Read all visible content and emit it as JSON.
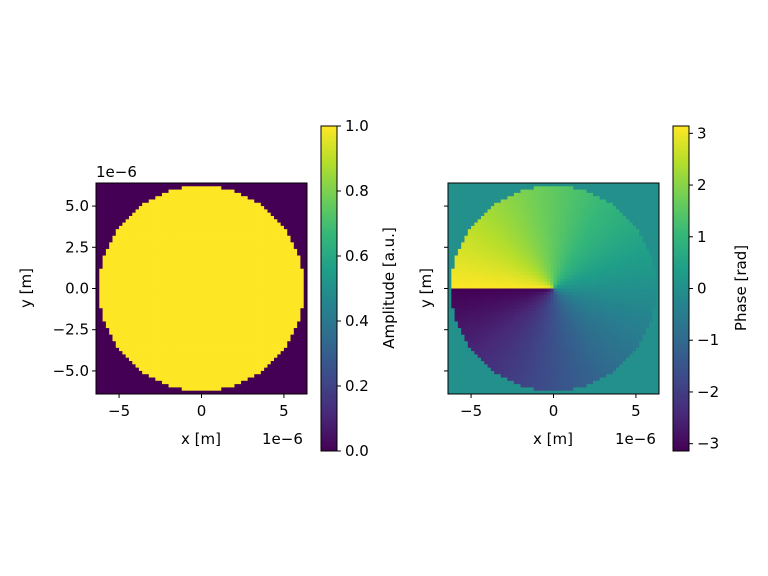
{
  "chart_data": [
    {
      "type": "heatmap",
      "field": "amplitude",
      "description": "Circular aperture: amplitude 1 inside disk, 0 outside",
      "xlabel": "x [m]",
      "ylabel": "y [m]",
      "x_offset_label": "1e−6",
      "y_offset_label": "1e−6",
      "xlim": [
        -6.4e-06,
        6.4e-06
      ],
      "ylim": [
        -6.4e-06,
        6.4e-06
      ],
      "aperture_radius": 6.2e-06,
      "grid_size": 64,
      "xticks": [
        {
          "v": -5,
          "label": "−5"
        },
        {
          "v": 0,
          "label": "0"
        },
        {
          "v": 5,
          "label": "5"
        }
      ],
      "yticks": [
        {
          "v": 5.0,
          "label": "5.0"
        },
        {
          "v": 2.5,
          "label": "2.5"
        },
        {
          "v": 0.0,
          "label": "0.0"
        },
        {
          "v": -2.5,
          "label": "−2.5"
        },
        {
          "v": -5.0,
          "label": "−5.0"
        }
      ],
      "colorbar": {
        "label": "Amplitude [a.u.]",
        "range": [
          0.0,
          1.0
        ],
        "ticks": [
          {
            "v": 0.0,
            "label": "0.0"
          },
          {
            "v": 0.2,
            "label": "0.2"
          },
          {
            "v": 0.4,
            "label": "0.4"
          },
          {
            "v": 0.6,
            "label": "0.6"
          },
          {
            "v": 0.8,
            "label": "0.8"
          },
          {
            "v": 1.0,
            "label": "1.0"
          }
        ]
      },
      "colormap": "viridis"
    },
    {
      "type": "heatmap",
      "field": "phase",
      "description": "Vortex phase atan2(y,x) inside disk, 0 outside",
      "xlabel": "x [m]",
      "ylabel": "y [m]",
      "x_offset_label": "1e−6",
      "xlim": [
        -6.4e-06,
        6.4e-06
      ],
      "ylim": [
        -6.4e-06,
        6.4e-06
      ],
      "aperture_radius": 6.2e-06,
      "grid_size": 64,
      "xticks": [
        {
          "v": -5,
          "label": "−5"
        },
        {
          "v": 0,
          "label": "0"
        },
        {
          "v": 5,
          "label": "5"
        }
      ],
      "yticks": [
        {
          "v": 5.0,
          "label": ""
        },
        {
          "v": 2.5,
          "label": ""
        },
        {
          "v": 0.0,
          "label": ""
        },
        {
          "v": -2.5,
          "label": ""
        },
        {
          "v": -5.0,
          "label": ""
        }
      ],
      "colorbar": {
        "label": "Phase [rad]",
        "range": [
          -3.1416,
          3.1416
        ],
        "ticks": [
          {
            "v": -3,
            "label": "−3"
          },
          {
            "v": -2,
            "label": "−2"
          },
          {
            "v": -1,
            "label": "−1"
          },
          {
            "v": 0,
            "label": "0"
          },
          {
            "v": 1,
            "label": "1"
          },
          {
            "v": 2,
            "label": "2"
          },
          {
            "v": 3,
            "label": "3"
          }
        ]
      },
      "colormap": "viridis"
    }
  ],
  "colors": {
    "viridis_stops": [
      "#440154",
      "#482878",
      "#3e4989",
      "#31688e",
      "#26828e",
      "#1f9e89",
      "#35b779",
      "#6ece58",
      "#b5de2b",
      "#fde725"
    ]
  }
}
